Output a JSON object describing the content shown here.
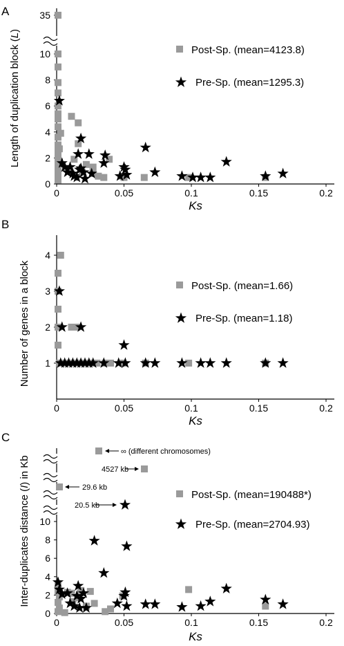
{
  "chart_data": [
    {
      "type": "scatter",
      "panel": "A",
      "xlabel": "Ks",
      "ylabel": "Length of duplication block (L)",
      "xlim": [
        0,
        0.2
      ],
      "ylim": [
        0,
        11
      ],
      "x_ticks": [
        "0",
        "0.05",
        "0.1",
        "0.15",
        "0.2"
      ],
      "y_ticks": [
        "0",
        "2",
        "4",
        "6",
        "8",
        "10",
        "35"
      ],
      "axis_break": "between 10 and 35",
      "grid": false,
      "legend_position": "right",
      "series": [
        {
          "name": "Post-Sp. (mean=4123.8)",
          "marker": "square",
          "color": "#9a9a9a",
          "points": [
            [
              0.001,
              35
            ],
            [
              0.001,
              10
            ],
            [
              0.001,
              9
            ],
            [
              0.001,
              7.8
            ],
            [
              0.001,
              7
            ],
            [
              0.001,
              6
            ],
            [
              0.001,
              5.4
            ],
            [
              0.001,
              5
            ],
            [
              0.001,
              4.4
            ],
            [
              0.001,
              3.6
            ],
            [
              0.001,
              3
            ],
            [
              0.001,
              2.5
            ],
            [
              0.001,
              2
            ],
            [
              0.001,
              1.5
            ],
            [
              0.001,
              1
            ],
            [
              0.001,
              0.6
            ],
            [
              0.001,
              0.3
            ],
            [
              0.003,
              3.9
            ],
            [
              0.002,
              2.7
            ],
            [
              0.011,
              5.2
            ],
            [
              0.016,
              4.7
            ],
            [
              0.016,
              3.1
            ],
            [
              0.013,
              1.9
            ],
            [
              0.019,
              0.9
            ],
            [
              0.022,
              1.5
            ],
            [
              0.027,
              1.3
            ],
            [
              0.027,
              0.8
            ],
            [
              0.031,
              0.6
            ],
            [
              0.035,
              0.5
            ],
            [
              0.039,
              1.9
            ],
            [
              0.049,
              0.6
            ],
            [
              0.05,
              0.5
            ],
            [
              0.065,
              0.5
            ],
            [
              0.098,
              0.5
            ],
            [
              0.155,
              0.5
            ]
          ]
        },
        {
          "name": "Pre-Sp. (mean=1295.3)",
          "marker": "star",
          "color": "#000000",
          "points": [
            [
              0.002,
              6.4
            ],
            [
              0.004,
              1.6
            ],
            [
              0.006,
              1.3
            ],
            [
              0.008,
              0.9
            ],
            [
              0.01,
              1.3
            ],
            [
              0.012,
              0.8
            ],
            [
              0.013,
              0.6
            ],
            [
              0.015,
              0.5
            ],
            [
              0.016,
              2.3
            ],
            [
              0.017,
              1.1
            ],
            [
              0.018,
              1.2
            ],
            [
              0.018,
              3.5
            ],
            [
              0.02,
              0.9
            ],
            [
              0.021,
              0.4
            ],
            [
              0.024,
              2.3
            ],
            [
              0.026,
              0.8
            ],
            [
              0.035,
              1.6
            ],
            [
              0.036,
              2.2
            ],
            [
              0.047,
              0.6
            ],
            [
              0.05,
              1.3
            ],
            [
              0.051,
              1.1
            ],
            [
              0.052,
              0.7
            ],
            [
              0.066,
              2.8
            ],
            [
              0.073,
              0.9
            ],
            [
              0.093,
              0.6
            ],
            [
              0.101,
              0.5
            ],
            [
              0.107,
              0.5
            ],
            [
              0.114,
              0.5
            ],
            [
              0.126,
              1.7
            ],
            [
              0.155,
              0.6
            ],
            [
              0.168,
              0.8
            ]
          ]
        }
      ]
    },
    {
      "type": "scatter",
      "panel": "B",
      "xlabel": "Ks",
      "ylabel": "Number of genes in a block",
      "xlim": [
        0,
        0.2
      ],
      "ylim": [
        0,
        4.4
      ],
      "x_ticks": [
        "0",
        "0.05",
        "0.1",
        "0.15",
        "0.2"
      ],
      "y_ticks": [
        "1",
        "2",
        "3",
        "4"
      ],
      "grid": false,
      "legend_position": "right",
      "series": [
        {
          "name": "Post-Sp. (mean=1.66)",
          "marker": "square",
          "color": "#9a9a9a",
          "points": [
            [
              0.003,
              4
            ],
            [
              0.001,
              3.5
            ],
            [
              0.001,
              3
            ],
            [
              0.001,
              2.5
            ],
            [
              0.001,
              2
            ],
            [
              0.001,
              1.5
            ],
            [
              0.002,
              1
            ],
            [
              0.006,
              1
            ],
            [
              0.01,
              1
            ],
            [
              0.014,
              1
            ],
            [
              0.018,
              1
            ],
            [
              0.022,
              1
            ],
            [
              0.026,
              1
            ],
            [
              0.03,
              1
            ],
            [
              0.036,
              1
            ],
            [
              0.04,
              1
            ],
            [
              0.049,
              1
            ],
            [
              0.066,
              1
            ],
            [
              0.098,
              1
            ],
            [
              0.155,
              1
            ],
            [
              0.011,
              2
            ],
            [
              0.015,
              2
            ]
          ]
        },
        {
          "name": "Pre-Sp. (mean=1.18)",
          "marker": "star",
          "color": "#000000",
          "points": [
            [
              0.002,
              3
            ],
            [
              0.004,
              2
            ],
            [
              0.018,
              2
            ],
            [
              0.05,
              1.5
            ],
            [
              0.003,
              1
            ],
            [
              0.006,
              1
            ],
            [
              0.009,
              1
            ],
            [
              0.012,
              1
            ],
            [
              0.015,
              1
            ],
            [
              0.018,
              1
            ],
            [
              0.021,
              1
            ],
            [
              0.024,
              1
            ],
            [
              0.027,
              1
            ],
            [
              0.035,
              1
            ],
            [
              0.046,
              1
            ],
            [
              0.051,
              1
            ],
            [
              0.066,
              1
            ],
            [
              0.073,
              1
            ],
            [
              0.093,
              1
            ],
            [
              0.107,
              1
            ],
            [
              0.114,
              1
            ],
            [
              0.126,
              1
            ],
            [
              0.155,
              1
            ],
            [
              0.168,
              1
            ]
          ]
        }
      ]
    },
    {
      "type": "scatter",
      "panel": "C",
      "xlabel": "Ks",
      "ylabel": "Inter-duplicates distance (I) in Kb",
      "xlim": [
        0,
        0.2
      ],
      "ylim": [
        0,
        11
      ],
      "x_ticks": [
        "0",
        "0.05",
        "0.1",
        "0.15",
        "0.2"
      ],
      "y_ticks": [
        "0",
        "2",
        "4",
        "6",
        "8",
        "10"
      ],
      "axis_break": "broken y-axis above 10",
      "grid": false,
      "legend_position": "right",
      "annotations": [
        "∞ (different chromosomes)",
        "4527 kb",
        "29.6 kb",
        "20.5 kb"
      ],
      "series": [
        {
          "name": "Post-Sp. (mean=190488*)",
          "marker": "square",
          "color": "#9a9a9a",
          "points": [
            [
              0.031,
              "∞"
            ],
            [
              0.065,
              4527
            ],
            [
              0.003,
              29.6
            ],
            [
              0.001,
              3
            ],
            [
              0.001,
              2.4
            ],
            [
              0.002,
              1.8
            ],
            [
              0.001,
              1.2
            ],
            [
              0.002,
              0.6
            ],
            [
              0.001,
              0.2
            ],
            [
              0.006,
              0.1
            ],
            [
              0.008,
              2.3
            ],
            [
              0.011,
              2.2
            ],
            [
              0.012,
              1.3
            ],
            [
              0.016,
              1.7
            ],
            [
              0.018,
              2.5
            ],
            [
              0.022,
              0.8
            ],
            [
              0.025,
              2.4
            ],
            [
              0.028,
              1.1
            ],
            [
              0.036,
              0.2
            ],
            [
              0.04,
              0.5
            ],
            [
              0.049,
              1.9
            ],
            [
              0.098,
              2.6
            ],
            [
              0.155,
              0.8
            ]
          ]
        },
        {
          "name": "Pre-Sp. (mean=2704.93)",
          "marker": "star",
          "color": "#000000",
          "points": [
            [
              0.05,
              20.5
            ],
            [
              0.001,
              3.4
            ],
            [
              0.002,
              2.6
            ],
            [
              0.004,
              2.1
            ],
            [
              0.008,
              2.2
            ],
            [
              0.01,
              1.1
            ],
            [
              0.013,
              0.8
            ],
            [
              0.015,
              1.9
            ],
            [
              0.016,
              3
            ],
            [
              0.017,
              0.6
            ],
            [
              0.018,
              1.6
            ],
            [
              0.02,
              2.2
            ],
            [
              0.022,
              0.6
            ],
            [
              0.028,
              7.9
            ],
            [
              0.035,
              4.4
            ],
            [
              0.045,
              1.1
            ],
            [
              0.05,
              1.9
            ],
            [
              0.051,
              2.3
            ],
            [
              0.052,
              7.3
            ],
            [
              0.052,
              0.8
            ],
            [
              0.066,
              1
            ],
            [
              0.073,
              1
            ],
            [
              0.093,
              0.7
            ],
            [
              0.107,
              0.8
            ],
            [
              0.114,
              1.3
            ],
            [
              0.126,
              2.7
            ],
            [
              0.155,
              1.5
            ],
            [
              0.168,
              1
            ]
          ]
        }
      ]
    }
  ]
}
